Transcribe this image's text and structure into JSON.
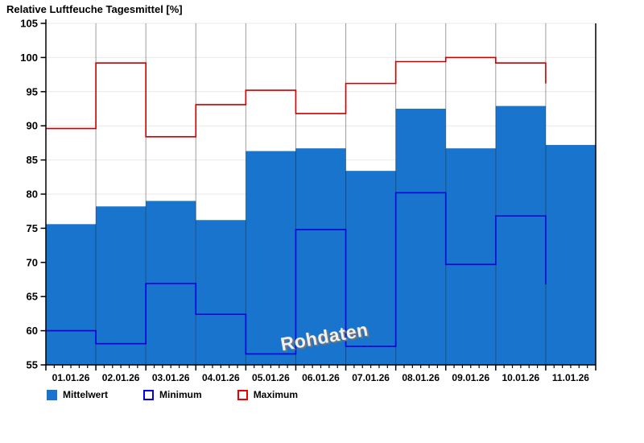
{
  "title": "Relative Luftfeuche Tagesmittel [%]",
  "watermark": "Rohdaten",
  "legend": {
    "items": [
      {
        "key": "mittelwert",
        "label": "Mittelwert",
        "style": "filled",
        "color": "#1874cd"
      },
      {
        "key": "minimum",
        "label": "Minimum",
        "style": "outline",
        "color": "#0000ee"
      },
      {
        "key": "maximum",
        "label": "Maximum",
        "style": "outline",
        "color": "#ee0000"
      }
    ]
  },
  "chart_data": {
    "type": "bar",
    "title": "Relative Luftfeuche Tagesmittel [%]",
    "categories": [
      "01.01.26",
      "02.01.26",
      "03.01.26",
      "04.01.26",
      "05.01.26",
      "06.01.26",
      "07.01.26",
      "08.01.26",
      "09.01.26",
      "10.01.26",
      "11.01.26"
    ],
    "series": [
      {
        "name": "Mittelwert",
        "type": "bar",
        "color": "#1874cd",
        "values": [
          75.6,
          78.2,
          79.0,
          76.2,
          86.3,
          86.7,
          83.4,
          92.5,
          86.7,
          92.9,
          87.2
        ]
      },
      {
        "name": "Minimum",
        "type": "step",
        "color": "#0000d8",
        "values": [
          60.0,
          58.1,
          66.9,
          62.4,
          56.6,
          74.8,
          57.7,
          80.2,
          69.7,
          76.8,
          66.8
        ]
      },
      {
        "name": "Maximum",
        "type": "step",
        "color": "#c80000",
        "values": [
          89.6,
          99.2,
          88.4,
          93.1,
          95.2,
          91.8,
          96.2,
          99.4,
          100.0,
          99.2,
          96.2
        ]
      }
    ],
    "ylim": [
      55,
      105
    ],
    "y_tick_step": 5,
    "y_tick_labels": [
      "55",
      "60",
      "65",
      "70",
      "75",
      "80",
      "85",
      "90",
      "95",
      "100",
      "105"
    ],
    "x_minor_ticks_per_day": 5,
    "grid": "horizontal",
    "legend_position": "bottom-left",
    "watermark": "Rohdaten",
    "last_day_step_style": "vertical-only"
  }
}
